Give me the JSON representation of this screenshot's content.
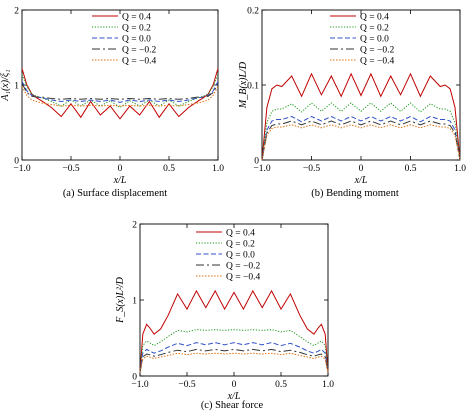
{
  "colors": [
    "#c00000",
    "#1a9a1a",
    "#3050c8",
    "#333333",
    "#e07010"
  ],
  "dashes": [
    "",
    "1.2,1.6",
    "5,2.5",
    "8,3,2,3",
    "1.5,1.5"
  ],
  "legend": [
    "Q = 0.4",
    "Q = 0.2",
    "Q = 0.0",
    "Q = −0.2",
    "Q = −0.4"
  ],
  "panels": [
    {
      "id": "a",
      "caption": "(a) Surface displacement",
      "xlabel": "x/L",
      "ylabel": "A₁(x)/ξ₁",
      "xlim": [
        -1,
        1
      ],
      "ylim": [
        0,
        2
      ],
      "xticks": [
        "−1.0",
        "−0.5",
        "0",
        "0.5",
        "1.0"
      ],
      "xtick_values": [
        -1,
        -0.5,
        0,
        0.5,
        1
      ],
      "yticks": [
        "0",
        "1",
        "2"
      ],
      "ytick_values": [
        0,
        1,
        2
      ]
    },
    {
      "id": "b",
      "caption": "(b) Bending moment",
      "xlabel": "x/L",
      "ylabel": "M_B(x)L/D",
      "xlim": [
        -1,
        1
      ],
      "ylim": [
        0,
        0.2
      ],
      "xticks": [
        "−1.0",
        "−0.5",
        "0",
        "0.5",
        "1.0"
      ],
      "xtick_values": [
        -1,
        -0.5,
        0,
        0.5,
        1
      ],
      "yticks": [
        "0",
        "0.1",
        "0.2"
      ],
      "ytick_values": [
        0,
        0.1,
        0.2
      ]
    },
    {
      "id": "c",
      "caption": "(c) Shear force",
      "xlabel": "x/L",
      "ylabel": "F_S(x)L²/D",
      "xlim": [
        -1,
        1
      ],
      "ylim": [
        0,
        2
      ],
      "xticks": [
        "−1.0",
        "−0.5",
        "0",
        "0.5",
        "1.0"
      ],
      "xtick_values": [
        -1,
        -0.5,
        0,
        0.5,
        1
      ],
      "yticks": [
        "0",
        "1",
        "2"
      ],
      "ytick_values": [
        0,
        1,
        2
      ]
    }
  ],
  "chart_data": [
    {
      "type": "line",
      "title": "(a) Surface displacement",
      "xlabel": "x/L",
      "ylabel": "A₁(x)/ξ₁",
      "xlim": [
        -1,
        1
      ],
      "ylim": [
        0,
        2
      ],
      "x": [
        -1.0,
        -0.95,
        -0.9,
        -0.85,
        -0.8,
        -0.7,
        -0.6,
        -0.5,
        -0.4,
        -0.3,
        -0.2,
        -0.1,
        0.0,
        0.1,
        0.2,
        0.3,
        0.4,
        0.5,
        0.6,
        0.7,
        0.8,
        0.85,
        0.9,
        0.95,
        1.0
      ],
      "series": [
        {
          "name": "Q = 0.4",
          "values": [
            1.22,
            1.0,
            0.88,
            0.83,
            0.79,
            0.7,
            0.58,
            0.75,
            0.57,
            0.78,
            0.6,
            0.72,
            0.55,
            0.72,
            0.6,
            0.78,
            0.57,
            0.75,
            0.58,
            0.7,
            0.79,
            0.83,
            0.88,
            1.0,
            1.22
          ]
        },
        {
          "name": "Q = 0.2",
          "values": [
            1.14,
            0.98,
            0.88,
            0.85,
            0.83,
            0.78,
            0.72,
            0.8,
            0.72,
            0.8,
            0.72,
            0.79,
            0.7,
            0.79,
            0.72,
            0.8,
            0.72,
            0.8,
            0.72,
            0.78,
            0.83,
            0.85,
            0.88,
            0.98,
            1.14
          ]
        },
        {
          "name": "Q = 0.0",
          "values": [
            1.05,
            0.92,
            0.86,
            0.84,
            0.83,
            0.8,
            0.78,
            0.8,
            0.78,
            0.8,
            0.78,
            0.8,
            0.77,
            0.8,
            0.78,
            0.8,
            0.78,
            0.8,
            0.78,
            0.8,
            0.83,
            0.84,
            0.86,
            0.92,
            1.05
          ]
        },
        {
          "name": "Q = −0.2",
          "values": [
            1.02,
            0.9,
            0.85,
            0.84,
            0.84,
            0.82,
            0.81,
            0.82,
            0.81,
            0.82,
            0.81,
            0.82,
            0.81,
            0.82,
            0.81,
            0.82,
            0.81,
            0.82,
            0.81,
            0.82,
            0.84,
            0.84,
            0.85,
            0.9,
            1.02
          ]
        },
        {
          "name": "Q = −0.4",
          "values": [
            0.98,
            0.86,
            0.8,
            0.78,
            0.76,
            0.74,
            0.72,
            0.73,
            0.72,
            0.73,
            0.72,
            0.73,
            0.72,
            0.73,
            0.72,
            0.73,
            0.72,
            0.73,
            0.72,
            0.74,
            0.76,
            0.78,
            0.8,
            0.86,
            0.98
          ]
        }
      ]
    },
    {
      "type": "line",
      "title": "(b) Bending moment",
      "xlabel": "x/L",
      "ylabel": "M_B(x)L/D",
      "xlim": [
        -1,
        1
      ],
      "ylim": [
        0,
        0.2
      ],
      "x": [
        -1.0,
        -0.95,
        -0.9,
        -0.85,
        -0.8,
        -0.7,
        -0.6,
        -0.5,
        -0.4,
        -0.3,
        -0.2,
        -0.1,
        0.0,
        0.1,
        0.2,
        0.3,
        0.4,
        0.5,
        0.6,
        0.7,
        0.8,
        0.85,
        0.9,
        0.95,
        1.0
      ],
      "series": [
        {
          "name": "Q = 0.4",
          "values": [
            0.0,
            0.07,
            0.095,
            0.1,
            0.098,
            0.112,
            0.085,
            0.115,
            0.087,
            0.112,
            0.085,
            0.115,
            0.086,
            0.115,
            0.085,
            0.112,
            0.087,
            0.115,
            0.085,
            0.112,
            0.098,
            0.1,
            0.095,
            0.07,
            0.0
          ]
        },
        {
          "name": "Q = 0.2",
          "values": [
            0.0,
            0.05,
            0.065,
            0.068,
            0.068,
            0.075,
            0.064,
            0.076,
            0.065,
            0.076,
            0.065,
            0.076,
            0.065,
            0.076,
            0.065,
            0.076,
            0.065,
            0.076,
            0.064,
            0.075,
            0.068,
            0.068,
            0.065,
            0.05,
            0.0
          ]
        },
        {
          "name": "Q = 0.0",
          "values": [
            0.0,
            0.04,
            0.052,
            0.054,
            0.054,
            0.058,
            0.051,
            0.058,
            0.052,
            0.058,
            0.052,
            0.058,
            0.052,
            0.058,
            0.052,
            0.058,
            0.052,
            0.058,
            0.051,
            0.058,
            0.054,
            0.054,
            0.052,
            0.04,
            0.0
          ]
        },
        {
          "name": "Q = −0.2",
          "values": [
            0.0,
            0.036,
            0.046,
            0.048,
            0.048,
            0.052,
            0.047,
            0.052,
            0.047,
            0.052,
            0.047,
            0.052,
            0.047,
            0.052,
            0.047,
            0.052,
            0.047,
            0.052,
            0.047,
            0.052,
            0.048,
            0.048,
            0.046,
            0.036,
            0.0
          ]
        },
        {
          "name": "Q = −0.4",
          "values": [
            0.0,
            0.033,
            0.042,
            0.044,
            0.044,
            0.047,
            0.043,
            0.047,
            0.043,
            0.047,
            0.043,
            0.047,
            0.043,
            0.047,
            0.043,
            0.047,
            0.043,
            0.047,
            0.043,
            0.047,
            0.044,
            0.044,
            0.042,
            0.033,
            0.0
          ]
        }
      ]
    },
    {
      "type": "line",
      "title": "(c) Shear force",
      "xlabel": "x/L",
      "ylabel": "F_S(x)L²/D",
      "xlim": [
        -1,
        1
      ],
      "ylim": [
        0,
        2
      ],
      "x": [
        -1.0,
        -0.97,
        -0.93,
        -0.9,
        -0.85,
        -0.78,
        -0.7,
        -0.6,
        -0.5,
        -0.4,
        -0.3,
        -0.2,
        -0.1,
        0.0,
        0.1,
        0.2,
        0.3,
        0.4,
        0.5,
        0.6,
        0.7,
        0.78,
        0.85,
        0.9,
        0.93,
        0.97,
        1.0
      ],
      "series": [
        {
          "name": "Q = 0.4",
          "values": [
            0.05,
            0.55,
            0.68,
            0.64,
            0.55,
            0.62,
            0.8,
            1.08,
            0.88,
            1.12,
            0.9,
            1.12,
            0.88,
            1.1,
            0.88,
            1.12,
            0.9,
            1.12,
            0.88,
            1.08,
            0.8,
            0.62,
            0.55,
            0.64,
            0.68,
            0.55,
            0.05
          ]
        },
        {
          "name": "Q = 0.2",
          "values": [
            0.05,
            0.4,
            0.46,
            0.44,
            0.4,
            0.45,
            0.52,
            0.6,
            0.58,
            0.61,
            0.6,
            0.61,
            0.6,
            0.61,
            0.6,
            0.61,
            0.6,
            0.61,
            0.58,
            0.6,
            0.52,
            0.45,
            0.4,
            0.44,
            0.46,
            0.4,
            0.05
          ]
        },
        {
          "name": "Q = 0.0",
          "values": [
            0.05,
            0.3,
            0.35,
            0.33,
            0.3,
            0.33,
            0.38,
            0.43,
            0.4,
            0.44,
            0.41,
            0.44,
            0.41,
            0.44,
            0.41,
            0.44,
            0.41,
            0.44,
            0.4,
            0.43,
            0.38,
            0.33,
            0.3,
            0.33,
            0.35,
            0.3,
            0.05
          ]
        },
        {
          "name": "Q = −0.2",
          "values": [
            0.05,
            0.25,
            0.29,
            0.28,
            0.26,
            0.28,
            0.31,
            0.34,
            0.32,
            0.35,
            0.33,
            0.35,
            0.33,
            0.35,
            0.33,
            0.35,
            0.33,
            0.35,
            0.32,
            0.34,
            0.31,
            0.28,
            0.26,
            0.28,
            0.29,
            0.25,
            0.05
          ]
        },
        {
          "name": "Q = −0.4",
          "values": [
            0.05,
            0.22,
            0.26,
            0.25,
            0.23,
            0.25,
            0.27,
            0.3,
            0.28,
            0.3,
            0.29,
            0.3,
            0.29,
            0.3,
            0.29,
            0.3,
            0.29,
            0.3,
            0.28,
            0.3,
            0.27,
            0.25,
            0.23,
            0.25,
            0.26,
            0.22,
            0.05
          ]
        }
      ]
    }
  ]
}
